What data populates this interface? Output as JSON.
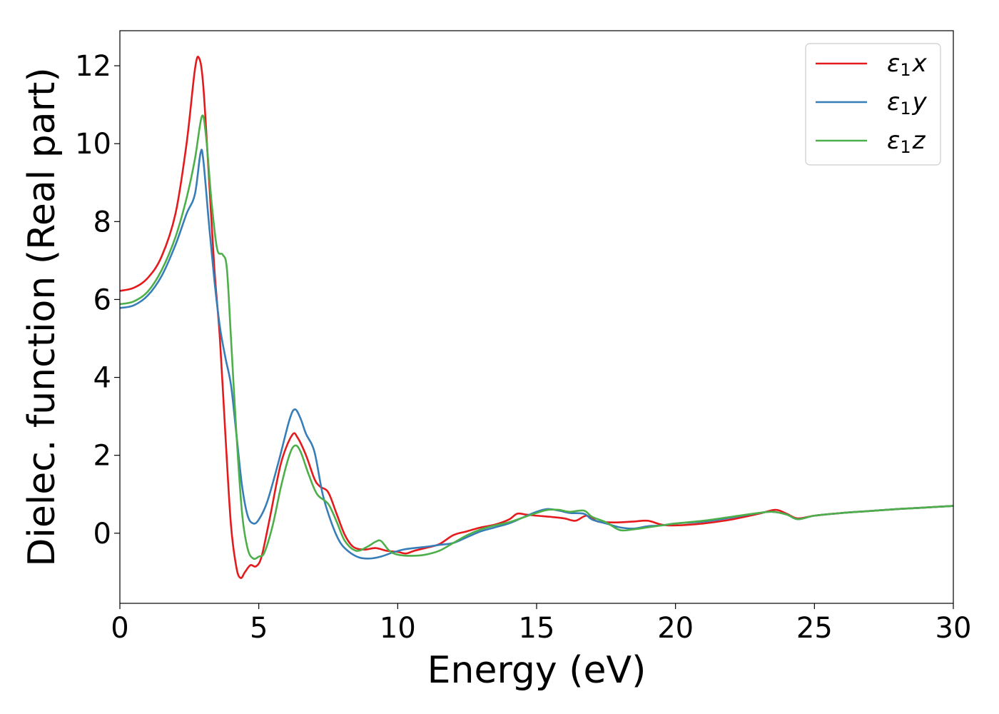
{
  "chart_data": {
    "type": "line",
    "xlabel": "Energy (eV)",
    "ylabel": "Dielec. function (Real part)",
    "xlim": [
      0,
      30
    ],
    "ylim": [
      -1.8,
      12.9
    ],
    "xticks": [
      0,
      5,
      10,
      15,
      20,
      25,
      30
    ],
    "yticks": [
      0,
      2,
      4,
      6,
      8,
      10,
      12
    ],
    "legend_position": "top-right",
    "grid": false,
    "series": [
      {
        "name": "ε1x",
        "legend_base": "ε",
        "legend_sub": "1",
        "legend_var": "x",
        "color": "#e41a1c",
        "points": [
          [
            0,
            6.22
          ],
          [
            0.5,
            6.3
          ],
          [
            1,
            6.55
          ],
          [
            1.5,
            7.1
          ],
          [
            2,
            8.2
          ],
          [
            2.4,
            10.0
          ],
          [
            2.7,
            11.9
          ],
          [
            2.85,
            12.2
          ],
          [
            3,
            11.5
          ],
          [
            3.2,
            9.2
          ],
          [
            3.4,
            6.8
          ],
          [
            3.6,
            5.0
          ],
          [
            3.8,
            2.5
          ],
          [
            4.0,
            0.2
          ],
          [
            4.2,
            -0.9
          ],
          [
            4.35,
            -1.15
          ],
          [
            4.5,
            -1.0
          ],
          [
            4.7,
            -0.82
          ],
          [
            4.9,
            -0.85
          ],
          [
            5.1,
            -0.6
          ],
          [
            5.4,
            0.4
          ],
          [
            5.8,
            1.8
          ],
          [
            6.2,
            2.52
          ],
          [
            6.4,
            2.45
          ],
          [
            6.7,
            2.0
          ],
          [
            7.0,
            1.4
          ],
          [
            7.2,
            1.2
          ],
          [
            7.5,
            1.05
          ],
          [
            7.8,
            0.5
          ],
          [
            8.1,
            -0.05
          ],
          [
            8.4,
            -0.35
          ],
          [
            8.8,
            -0.42
          ],
          [
            9.2,
            -0.38
          ],
          [
            9.6,
            -0.45
          ],
          [
            10.0,
            -0.48
          ],
          [
            10.3,
            -0.52
          ],
          [
            10.6,
            -0.45
          ],
          [
            11.0,
            -0.38
          ],
          [
            11.5,
            -0.28
          ],
          [
            12.0,
            -0.05
          ],
          [
            12.5,
            0.05
          ],
          [
            13.0,
            0.15
          ],
          [
            13.5,
            0.22
          ],
          [
            14.0,
            0.35
          ],
          [
            14.3,
            0.5
          ],
          [
            14.6,
            0.48
          ],
          [
            15.0,
            0.45
          ],
          [
            15.5,
            0.42
          ],
          [
            16.0,
            0.38
          ],
          [
            16.4,
            0.32
          ],
          [
            16.8,
            0.45
          ],
          [
            17.2,
            0.3
          ],
          [
            17.6,
            0.28
          ],
          [
            18.0,
            0.28
          ],
          [
            18.5,
            0.3
          ],
          [
            19.0,
            0.32
          ],
          [
            19.5,
            0.22
          ],
          [
            20.0,
            0.2
          ],
          [
            21.0,
            0.25
          ],
          [
            22.0,
            0.35
          ],
          [
            23.0,
            0.5
          ],
          [
            23.6,
            0.6
          ],
          [
            24.0,
            0.5
          ],
          [
            24.4,
            0.38
          ],
          [
            25.0,
            0.45
          ],
          [
            26.0,
            0.52
          ],
          [
            27.0,
            0.57
          ],
          [
            28.0,
            0.62
          ],
          [
            29.0,
            0.66
          ],
          [
            30.0,
            0.7
          ]
        ]
      },
      {
        "name": "ε1y",
        "legend_base": "ε",
        "legend_sub": "1",
        "legend_var": "y",
        "color": "#377eb8",
        "points": [
          [
            0,
            5.78
          ],
          [
            0.5,
            5.85
          ],
          [
            1,
            6.1
          ],
          [
            1.5,
            6.6
          ],
          [
            2,
            7.4
          ],
          [
            2.4,
            8.2
          ],
          [
            2.7,
            8.7
          ],
          [
            2.9,
            9.75
          ],
          [
            3.0,
            9.6
          ],
          [
            3.2,
            8.0
          ],
          [
            3.4,
            6.5
          ],
          [
            3.6,
            5.3
          ],
          [
            3.8,
            4.5
          ],
          [
            4.0,
            3.8
          ],
          [
            4.2,
            2.5
          ],
          [
            4.4,
            1.2
          ],
          [
            4.6,
            0.45
          ],
          [
            4.8,
            0.25
          ],
          [
            5.0,
            0.35
          ],
          [
            5.3,
            0.8
          ],
          [
            5.7,
            1.8
          ],
          [
            6.1,
            2.9
          ],
          [
            6.3,
            3.18
          ],
          [
            6.5,
            2.95
          ],
          [
            6.7,
            2.55
          ],
          [
            7.0,
            2.1
          ],
          [
            7.3,
            1.0
          ],
          [
            7.6,
            0.3
          ],
          [
            7.9,
            -0.2
          ],
          [
            8.2,
            -0.45
          ],
          [
            8.6,
            -0.62
          ],
          [
            9.0,
            -0.65
          ],
          [
            9.4,
            -0.6
          ],
          [
            9.8,
            -0.5
          ],
          [
            10.2,
            -0.42
          ],
          [
            10.6,
            -0.38
          ],
          [
            11.0,
            -0.35
          ],
          [
            11.5,
            -0.3
          ],
          [
            12.0,
            -0.25
          ],
          [
            12.5,
            -0.1
          ],
          [
            13.0,
            0.05
          ],
          [
            13.5,
            0.15
          ],
          [
            14.0,
            0.25
          ],
          [
            14.5,
            0.4
          ],
          [
            15.0,
            0.55
          ],
          [
            15.4,
            0.62
          ],
          [
            15.8,
            0.58
          ],
          [
            16.2,
            0.52
          ],
          [
            16.7,
            0.5
          ],
          [
            17.0,
            0.35
          ],
          [
            17.5,
            0.25
          ],
          [
            18.0,
            0.15
          ],
          [
            18.5,
            0.12
          ],
          [
            19.0,
            0.18
          ],
          [
            19.5,
            0.2
          ],
          [
            20.0,
            0.25
          ],
          [
            21.0,
            0.3
          ],
          [
            22.0,
            0.4
          ],
          [
            23.0,
            0.52
          ],
          [
            23.5,
            0.55
          ],
          [
            24.0,
            0.48
          ],
          [
            24.4,
            0.36
          ],
          [
            25.0,
            0.45
          ],
          [
            26.0,
            0.52
          ],
          [
            27.0,
            0.57
          ],
          [
            28.0,
            0.62
          ],
          [
            29.0,
            0.66
          ],
          [
            30.0,
            0.7
          ]
        ]
      },
      {
        "name": "ε1z",
        "legend_base": "ε",
        "legend_sub": "1",
        "legend_var": "z",
        "color": "#4daf4a",
        "points": [
          [
            0,
            5.88
          ],
          [
            0.5,
            5.95
          ],
          [
            1,
            6.2
          ],
          [
            1.5,
            6.75
          ],
          [
            2,
            7.6
          ],
          [
            2.4,
            8.6
          ],
          [
            2.7,
            9.6
          ],
          [
            2.95,
            10.7
          ],
          [
            3.1,
            10.2
          ],
          [
            3.3,
            8.5
          ],
          [
            3.5,
            7.3
          ],
          [
            3.7,
            7.15
          ],
          [
            3.85,
            6.8
          ],
          [
            4.0,
            5.0
          ],
          [
            4.2,
            2.5
          ],
          [
            4.4,
            0.5
          ],
          [
            4.6,
            -0.4
          ],
          [
            4.8,
            -0.65
          ],
          [
            5.0,
            -0.6
          ],
          [
            5.2,
            -0.5
          ],
          [
            5.5,
            0.2
          ],
          [
            5.8,
            1.2
          ],
          [
            6.1,
            2.0
          ],
          [
            6.3,
            2.25
          ],
          [
            6.5,
            2.1
          ],
          [
            6.8,
            1.5
          ],
          [
            7.1,
            1.0
          ],
          [
            7.5,
            0.75
          ],
          [
            7.8,
            0.3
          ],
          [
            8.1,
            -0.2
          ],
          [
            8.5,
            -0.45
          ],
          [
            8.9,
            -0.35
          ],
          [
            9.2,
            -0.22
          ],
          [
            9.4,
            -0.2
          ],
          [
            9.7,
            -0.45
          ],
          [
            10.0,
            -0.55
          ],
          [
            10.5,
            -0.58
          ],
          [
            11.0,
            -0.55
          ],
          [
            11.5,
            -0.45
          ],
          [
            12.0,
            -0.25
          ],
          [
            12.5,
            -0.05
          ],
          [
            13.0,
            0.1
          ],
          [
            13.5,
            0.2
          ],
          [
            14.0,
            0.28
          ],
          [
            14.5,
            0.4
          ],
          [
            15.0,
            0.52
          ],
          [
            15.4,
            0.6
          ],
          [
            15.8,
            0.6
          ],
          [
            16.2,
            0.55
          ],
          [
            16.7,
            0.58
          ],
          [
            17.0,
            0.42
          ],
          [
            17.5,
            0.28
          ],
          [
            18.0,
            0.08
          ],
          [
            18.5,
            0.1
          ],
          [
            19.0,
            0.15
          ],
          [
            19.5,
            0.2
          ],
          [
            20.0,
            0.25
          ],
          [
            21.0,
            0.32
          ],
          [
            22.0,
            0.42
          ],
          [
            23.0,
            0.52
          ],
          [
            23.5,
            0.55
          ],
          [
            24.0,
            0.48
          ],
          [
            24.4,
            0.36
          ],
          [
            25.0,
            0.45
          ],
          [
            26.0,
            0.52
          ],
          [
            27.0,
            0.57
          ],
          [
            28.0,
            0.62
          ],
          [
            29.0,
            0.66
          ],
          [
            30.0,
            0.7
          ]
        ]
      }
    ]
  }
}
